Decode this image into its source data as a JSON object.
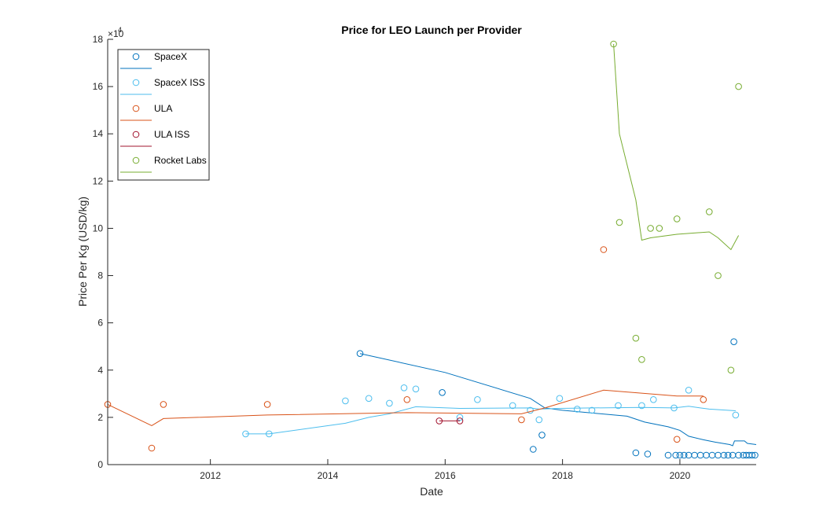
{
  "chart_data": {
    "type": "scatter",
    "title": "Price for LEO Launch per Provider",
    "xlabel": "Date",
    "ylabel": "Price Per Kg (USD/kg)",
    "y_exponent_base": "10",
    "y_exponent_power": "4",
    "xlim": [
      2010.25,
      2021.3
    ],
    "ylim": [
      0,
      18
    ],
    "x_ticks": [
      2012,
      2014,
      2016,
      2018,
      2020
    ],
    "y_ticks": [
      0,
      2,
      4,
      6,
      8,
      10,
      12,
      14,
      16,
      18
    ],
    "grid": false,
    "legend_position": "top-left",
    "series": [
      {
        "name": "SpaceX",
        "color": "#0072BD",
        "points": [
          [
            2014.55,
            4.7
          ],
          [
            2015.95,
            3.05
          ],
          [
            2017.5,
            0.65
          ],
          [
            2017.65,
            1.25
          ],
          [
            2019.25,
            0.5
          ],
          [
            2019.45,
            0.45
          ],
          [
            2019.8,
            0.4
          ],
          [
            2019.93,
            0.4
          ],
          [
            2020.0,
            0.4
          ],
          [
            2020.07,
            0.4
          ],
          [
            2020.15,
            0.4
          ],
          [
            2020.25,
            0.4
          ],
          [
            2020.35,
            0.4
          ],
          [
            2020.45,
            0.4
          ],
          [
            2020.55,
            0.4
          ],
          [
            2020.65,
            0.4
          ],
          [
            2020.75,
            0.4
          ],
          [
            2020.82,
            0.4
          ],
          [
            2020.9,
            0.4
          ],
          [
            2020.92,
            5.2
          ],
          [
            2021.0,
            0.4
          ],
          [
            2021.08,
            0.4
          ],
          [
            2021.13,
            0.4
          ],
          [
            2021.18,
            0.4
          ],
          [
            2021.23,
            0.4
          ],
          [
            2021.28,
            0.4
          ]
        ],
        "trend": [
          [
            2014.55,
            4.7
          ],
          [
            2016.0,
            3.9
          ],
          [
            2017.45,
            2.8
          ],
          [
            2017.7,
            2.4
          ],
          [
            2018.0,
            2.3
          ],
          [
            2019.1,
            2.05
          ],
          [
            2019.4,
            1.8
          ],
          [
            2019.8,
            1.6
          ],
          [
            2020.0,
            1.45
          ],
          [
            2020.15,
            1.2
          ],
          [
            2020.4,
            1.05
          ],
          [
            2020.6,
            0.95
          ],
          [
            2020.85,
            0.85
          ],
          [
            2020.9,
            0.8
          ],
          [
            2020.93,
            1.0
          ],
          [
            2021.1,
            1.0
          ],
          [
            2021.15,
            0.9
          ],
          [
            2021.3,
            0.85
          ]
        ]
      },
      {
        "name": "SpaceX ISS",
        "color": "#4DBEEE",
        "points": [
          [
            2012.6,
            1.3
          ],
          [
            2013.0,
            1.3
          ],
          [
            2014.3,
            2.7
          ],
          [
            2014.7,
            2.8
          ],
          [
            2015.05,
            2.6
          ],
          [
            2015.3,
            3.25
          ],
          [
            2015.5,
            3.2
          ],
          [
            2016.25,
            2.0
          ],
          [
            2016.55,
            2.75
          ],
          [
            2017.15,
            2.5
          ],
          [
            2017.45,
            2.3
          ],
          [
            2017.6,
            1.9
          ],
          [
            2017.95,
            2.8
          ],
          [
            2018.25,
            2.35
          ],
          [
            2018.5,
            2.3
          ],
          [
            2018.95,
            2.5
          ],
          [
            2019.35,
            2.5
          ],
          [
            2019.55,
            2.75
          ],
          [
            2019.9,
            2.4
          ],
          [
            2020.15,
            3.15
          ],
          [
            2020.95,
            2.1
          ]
        ],
        "trend": [
          [
            2012.6,
            1.3
          ],
          [
            2013.0,
            1.3
          ],
          [
            2014.3,
            1.75
          ],
          [
            2014.7,
            2.0
          ],
          [
            2015.05,
            2.15
          ],
          [
            2015.5,
            2.45
          ],
          [
            2016.25,
            2.38
          ],
          [
            2017.45,
            2.4
          ],
          [
            2017.6,
            2.35
          ],
          [
            2017.95,
            2.38
          ],
          [
            2018.5,
            2.4
          ],
          [
            2019.35,
            2.42
          ],
          [
            2019.9,
            2.4
          ],
          [
            2020.15,
            2.47
          ],
          [
            2020.5,
            2.35
          ],
          [
            2020.95,
            2.28
          ]
        ]
      },
      {
        "name": "ULA",
        "color": "#D95319",
        "points": [
          [
            2010.25,
            2.55
          ],
          [
            2011.0,
            0.7
          ],
          [
            2011.2,
            2.55
          ],
          [
            2012.97,
            2.55
          ],
          [
            2015.35,
            2.75
          ],
          [
            2017.3,
            1.9
          ],
          [
            2018.7,
            9.1
          ],
          [
            2019.95,
            1.07
          ],
          [
            2020.4,
            2.75
          ]
        ],
        "trend": [
          [
            2010.25,
            2.55
          ],
          [
            2011.0,
            1.65
          ],
          [
            2011.2,
            1.95
          ],
          [
            2012.97,
            2.1
          ],
          [
            2015.35,
            2.2
          ],
          [
            2017.3,
            2.15
          ],
          [
            2017.7,
            2.4
          ],
          [
            2018.7,
            3.15
          ],
          [
            2019.95,
            2.9
          ],
          [
            2020.4,
            2.9
          ]
        ]
      },
      {
        "name": "ULA ISS",
        "color": "#A2142F",
        "points": [
          [
            2015.9,
            1.85
          ],
          [
            2016.25,
            1.85
          ]
        ],
        "trend": [
          [
            2015.9,
            1.85
          ],
          [
            2016.25,
            1.85
          ]
        ]
      },
      {
        "name": "Rocket Labs",
        "color": "#77AC30",
        "points": [
          [
            2018.87,
            17.8
          ],
          [
            2018.97,
            10.25
          ],
          [
            2019.25,
            5.35
          ],
          [
            2019.35,
            4.45
          ],
          [
            2019.5,
            10.0
          ],
          [
            2019.65,
            10.0
          ],
          [
            2019.95,
            10.4
          ],
          [
            2020.5,
            10.7
          ],
          [
            2020.65,
            8.0
          ],
          [
            2020.87,
            4.0
          ],
          [
            2021.0,
            16.0
          ]
        ],
        "trend": [
          [
            2018.87,
            17.8
          ],
          [
            2018.97,
            14.0
          ],
          [
            2019.25,
            11.2
          ],
          [
            2019.35,
            9.5
          ],
          [
            2019.5,
            9.6
          ],
          [
            2019.65,
            9.65
          ],
          [
            2019.95,
            9.75
          ],
          [
            2020.5,
            9.85
          ],
          [
            2020.65,
            9.6
          ],
          [
            2020.87,
            9.1
          ],
          [
            2021.0,
            9.7
          ]
        ]
      }
    ]
  }
}
